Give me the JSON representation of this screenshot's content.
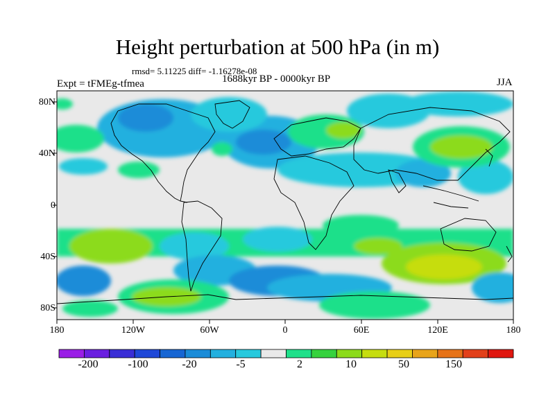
{
  "title": "Height perturbation at 500 hPa (in m)",
  "stats": "rmsd= 5.11225 diff= -1.16278e-08",
  "period": "1688kyr BP - 0000kyr BP",
  "experiment": "Expt = tFMEg-tfmea",
  "season": "JJA",
  "lat_labels": [
    "80N",
    "40N",
    "0",
    "40S",
    "80S"
  ],
  "lon_labels": [
    "180",
    "120W",
    "60W",
    "0",
    "60E",
    "120E",
    "180"
  ],
  "colorbar": {
    "labels": [
      "-200",
      "-100",
      "-20",
      "-5",
      "2",
      "10",
      "50",
      "150"
    ],
    "colors": [
      "#9a1ee6",
      "#6a1fe0",
      "#3a2ed6",
      "#1f48d8",
      "#1766d3",
      "#1b8cd8",
      "#23b0df",
      "#27c9dd",
      "#e9e9e9",
      "#1fe08a",
      "#36d23e",
      "#8cdb1a",
      "#c6dd10",
      "#e8cf17",
      "#e8a41a",
      "#e67217",
      "#e2401a",
      "#e01710"
    ]
  }
}
